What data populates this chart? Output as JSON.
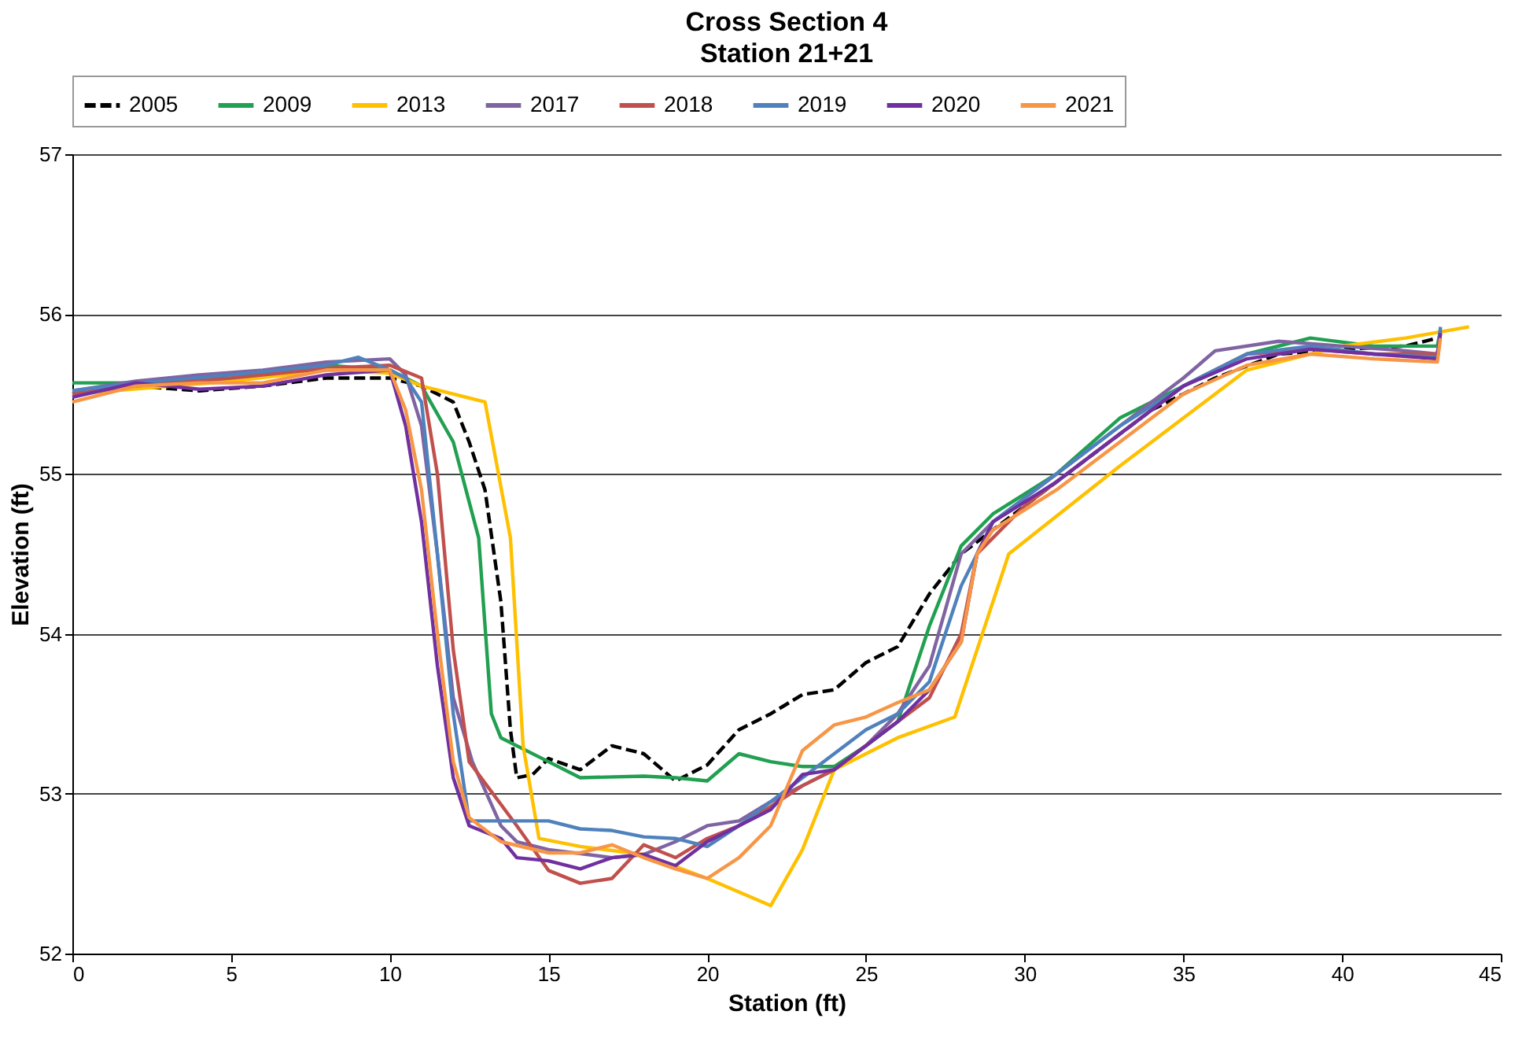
{
  "chart_data": {
    "type": "line",
    "title": "Cross Section 4",
    "subtitle": "Station 21+21",
    "xlabel": "Station (ft)",
    "ylabel": "Elevation (ft)",
    "xlim": [
      0,
      45
    ],
    "xticks": [
      0,
      5,
      10,
      15,
      20,
      25,
      30,
      35,
      40,
      45
    ],
    "ylim": [
      52,
      57
    ],
    "yticks": [
      52,
      53,
      54,
      55,
      56,
      57
    ],
    "grid": "y",
    "legend": "top",
    "marker": "none",
    "series": [
      {
        "name": "2005",
        "color": "#000000",
        "line_style": "dashed",
        "x": [
          0,
          2,
          4,
          6,
          8,
          10,
          11,
          12,
          12.5,
          13,
          13.5,
          13.8,
          14,
          14.5,
          15,
          16,
          17,
          18,
          19,
          20,
          21,
          22,
          23,
          24,
          25,
          26,
          27,
          28,
          29,
          30,
          32,
          34,
          36,
          38,
          40,
          42,
          43
        ],
        "values": [
          55.5,
          55.55,
          55.52,
          55.55,
          55.6,
          55.6,
          55.55,
          55.45,
          55.2,
          54.9,
          54.2,
          53.4,
          53.1,
          53.12,
          53.22,
          53.15,
          53.3,
          53.25,
          53.08,
          53.18,
          53.4,
          53.5,
          53.62,
          53.65,
          53.82,
          53.92,
          54.25,
          54.5,
          54.65,
          54.8,
          55.1,
          55.4,
          55.6,
          55.75,
          55.78,
          55.8,
          55.85
        ]
      },
      {
        "name": "2009",
        "color": "#20a050",
        "line_style": "solid",
        "x": [
          0,
          2,
          5,
          8,
          10,
          11,
          12,
          12.8,
          13.2,
          13.5,
          15,
          16,
          18,
          19,
          20,
          21,
          22,
          23,
          24,
          25,
          26,
          27,
          28,
          29,
          31,
          33,
          35,
          37,
          39,
          41,
          43,
          43.1
        ],
        "values": [
          55.57,
          55.57,
          55.6,
          55.68,
          55.65,
          55.55,
          55.2,
          54.6,
          53.5,
          53.35,
          53.2,
          53.1,
          53.11,
          53.1,
          53.08,
          53.25,
          53.2,
          53.17,
          53.17,
          53.3,
          53.45,
          54.05,
          54.55,
          54.75,
          55.0,
          55.35,
          55.55,
          55.75,
          55.85,
          55.8,
          55.8,
          55.9
        ]
      },
      {
        "name": "2013",
        "color": "#ffc000",
        "line_style": "solid",
        "x": [
          0,
          5,
          8,
          10,
          11,
          13,
          13.8,
          14.2,
          14.7,
          16,
          18,
          20,
          22,
          23,
          24,
          26,
          27.8,
          29.5,
          33,
          37,
          40,
          42,
          44
        ],
        "values": [
          55.5,
          55.58,
          55.65,
          55.63,
          55.55,
          55.45,
          54.6,
          53.3,
          52.72,
          52.67,
          52.62,
          52.47,
          52.3,
          52.65,
          53.15,
          53.35,
          53.48,
          54.5,
          55.05,
          55.65,
          55.8,
          55.85,
          55.92
        ]
      },
      {
        "name": "2017",
        "color": "#8064a2",
        "line_style": "solid",
        "x": [
          0,
          2,
          4,
          6,
          8,
          10,
          10.5,
          11,
          11.5,
          12,
          12.6,
          13.5,
          14,
          15,
          17,
          18,
          19,
          20,
          21,
          22,
          23,
          24,
          25,
          26,
          27,
          28,
          29,
          31,
          33,
          35,
          36,
          38,
          40,
          42,
          43,
          43.1
        ],
        "values": [
          55.52,
          55.58,
          55.62,
          55.65,
          55.7,
          55.72,
          55.62,
          55.3,
          54.5,
          53.6,
          53.2,
          52.8,
          52.7,
          52.65,
          52.6,
          52.62,
          52.7,
          52.8,
          52.83,
          52.95,
          53.05,
          53.15,
          53.3,
          53.5,
          53.8,
          54.5,
          54.7,
          55.0,
          55.3,
          55.6,
          55.77,
          55.83,
          55.8,
          55.77,
          55.75,
          55.88
        ]
      },
      {
        "name": "2018",
        "color": "#c0504d",
        "line_style": "solid",
        "x": [
          0,
          2,
          5,
          8,
          10,
          11,
          11.5,
          12,
          12.5,
          14,
          15,
          16,
          17,
          18,
          19,
          20,
          21,
          22,
          23,
          24,
          25,
          26,
          27,
          28,
          28.5,
          30,
          33,
          35,
          37,
          39,
          41,
          43,
          43.1
        ],
        "values": [
          55.5,
          55.55,
          55.6,
          55.66,
          55.68,
          55.6,
          55.0,
          53.9,
          53.2,
          52.8,
          52.52,
          52.44,
          52.47,
          52.68,
          52.6,
          52.72,
          52.8,
          52.92,
          53.05,
          53.15,
          53.3,
          53.45,
          53.6,
          54.0,
          54.5,
          54.8,
          55.25,
          55.55,
          55.75,
          55.78,
          55.75,
          55.75,
          55.9
        ]
      },
      {
        "name": "2019",
        "color": "#4f81bd",
        "line_style": "solid",
        "x": [
          0,
          2,
          5,
          8,
          9,
          10,
          10.5,
          11,
          11.5,
          12,
          12.5,
          14,
          15,
          16,
          17,
          18,
          19,
          20,
          21,
          22,
          23,
          24,
          25,
          26,
          27,
          28,
          29,
          31,
          33,
          35,
          37,
          39,
          41,
          43,
          43.1
        ],
        "values": [
          55.52,
          55.57,
          55.62,
          55.68,
          55.73,
          55.65,
          55.6,
          55.45,
          54.5,
          53.5,
          52.83,
          52.83,
          52.83,
          52.78,
          52.77,
          52.73,
          52.72,
          52.67,
          52.8,
          52.95,
          53.1,
          53.25,
          53.4,
          53.5,
          53.7,
          54.3,
          54.7,
          55.0,
          55.3,
          55.55,
          55.75,
          55.8,
          55.75,
          55.73,
          55.92
        ]
      },
      {
        "name": "2020",
        "color": "#7030a0",
        "line_style": "solid",
        "x": [
          0,
          2,
          4,
          6,
          8,
          10,
          10.5,
          11,
          11.5,
          12,
          12.5,
          13.5,
          14,
          15,
          16,
          17,
          18,
          19,
          20,
          21,
          22,
          23,
          24,
          25,
          26,
          27,
          28,
          28.5,
          29,
          31,
          33,
          35,
          37,
          39,
          41,
          43,
          43.1
        ],
        "values": [
          55.48,
          55.57,
          55.53,
          55.55,
          55.62,
          55.65,
          55.3,
          54.7,
          53.8,
          53.1,
          52.8,
          52.72,
          52.6,
          52.58,
          52.53,
          52.6,
          52.62,
          52.55,
          52.7,
          52.8,
          52.9,
          53.12,
          53.15,
          53.3,
          53.45,
          53.65,
          53.95,
          54.5,
          54.7,
          54.95,
          55.25,
          55.55,
          55.72,
          55.78,
          55.75,
          55.72,
          55.88
        ]
      },
      {
        "name": "2021",
        "color": "#f79646",
        "line_style": "solid",
        "x": [
          0,
          2,
          4,
          6,
          8,
          10,
          10.5,
          11,
          11.5,
          12,
          12.5,
          13.5,
          15,
          16,
          17,
          18,
          19,
          20,
          21,
          22,
          23,
          24,
          25,
          26,
          27,
          28,
          28.5,
          29,
          31,
          33,
          35,
          37,
          39,
          41,
          43,
          43.1
        ],
        "values": [
          55.45,
          55.55,
          55.57,
          55.57,
          55.65,
          55.65,
          55.4,
          54.9,
          54.0,
          53.2,
          52.85,
          52.7,
          52.63,
          52.63,
          52.68,
          52.6,
          52.53,
          52.47,
          52.6,
          52.8,
          53.27,
          53.43,
          53.48,
          53.57,
          53.65,
          53.95,
          54.5,
          54.65,
          54.9,
          55.2,
          55.5,
          55.68,
          55.75,
          55.72,
          55.7,
          55.85
        ]
      }
    ]
  }
}
